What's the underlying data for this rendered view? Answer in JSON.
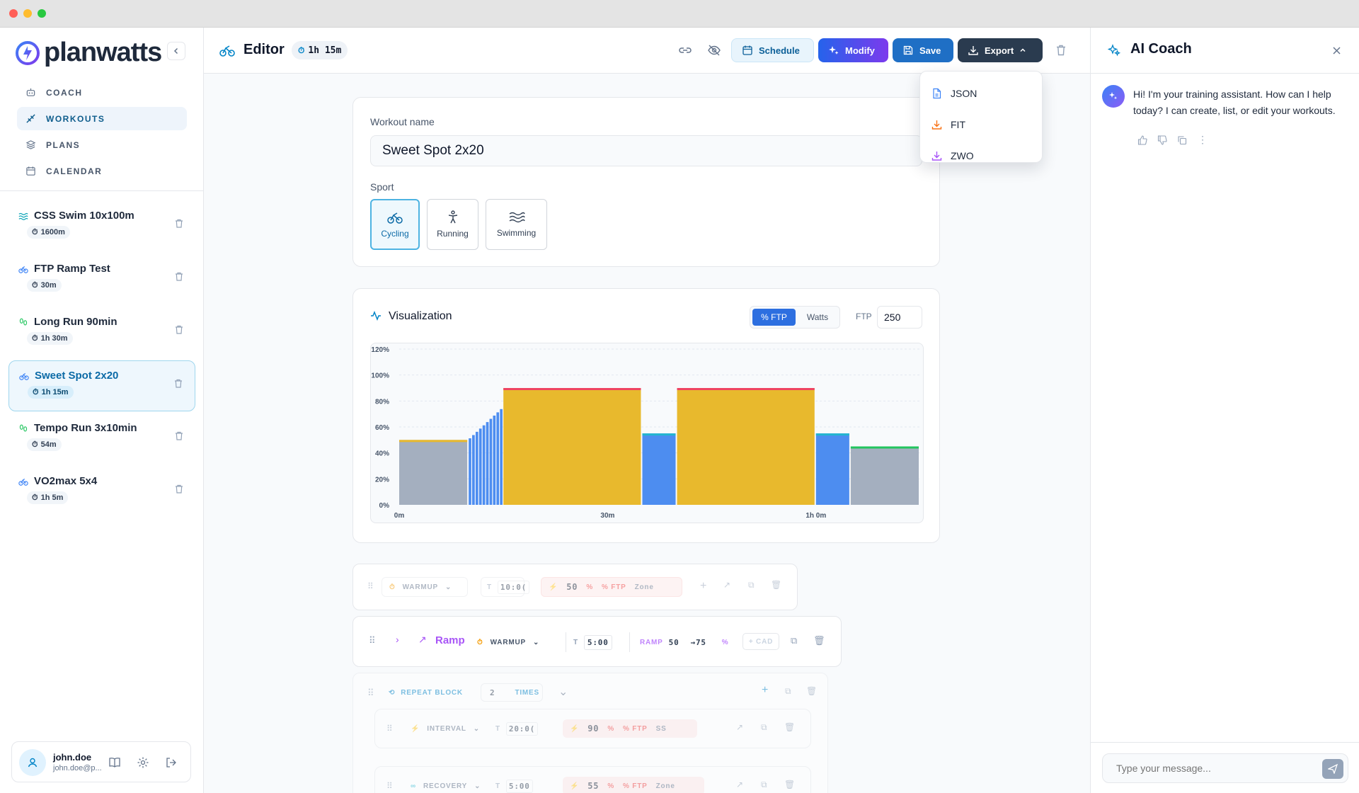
{
  "window": {
    "traffic_lights": {
      "close": "#ff5f57",
      "minimize": "#febc2e",
      "maximize": "#28c840"
    }
  },
  "app": {
    "brand": "planwatts",
    "accent": "#1d74c9"
  },
  "nav": [
    {
      "label": "COACH",
      "icon": "robot-icon"
    },
    {
      "label": "WORKOUTS",
      "icon": "workout-icon",
      "active": true
    },
    {
      "label": "PLANS",
      "icon": "layers-icon"
    },
    {
      "label": "CALENDAR",
      "icon": "calendar-icon"
    }
  ],
  "workouts": [
    {
      "name": "CSS Swim 10x100m",
      "meta": "1600m",
      "sport": "swimming"
    },
    {
      "name": "FTP Ramp Test",
      "meta": "30m",
      "sport": "cycling"
    },
    {
      "name": "Long Run 90min",
      "meta": "1h 30m",
      "sport": "running"
    },
    {
      "name": "Sweet Spot 2x20",
      "meta": "1h 15m",
      "sport": "cycling",
      "active": true
    },
    {
      "name": "Tempo Run 3x10min",
      "meta": "54m",
      "sport": "running"
    },
    {
      "name": "VO2max 5x4",
      "meta": "1h 5m",
      "sport": "cycling"
    }
  ],
  "user": {
    "name": "john.doe",
    "email": "john.doe@p..."
  },
  "editor": {
    "title": "Editor",
    "duration": "1h 15m",
    "buttons": {
      "schedule": "Schedule",
      "modify": "Modify",
      "save": "Save",
      "export": "Export"
    }
  },
  "export_menu": [
    "JSON",
    "FIT",
    "ZWO"
  ],
  "form": {
    "name_label": "Workout name",
    "name_value": "Sweet Spot 2x20",
    "sport_label": "Sport",
    "sports": [
      "Cycling",
      "Running",
      "Swimming"
    ],
    "selected_sport": "Cycling"
  },
  "viz": {
    "title": "Visualization",
    "toggle": [
      "% FTP",
      "Watts"
    ],
    "selected_toggle": "% FTP",
    "ftp_label": "FTP",
    "ftp_value": "250"
  },
  "chart_data": {
    "type": "bar",
    "y_ticks": [
      "0%",
      "20%",
      "40%",
      "60%",
      "80%",
      "100%",
      "120%"
    ],
    "ylim": [
      0,
      120
    ],
    "x_ticks": [
      {
        "label": "0m",
        "minute": 0
      },
      {
        "label": "30m",
        "minute": 30
      },
      {
        "label": "1h 0m",
        "minute": 60
      }
    ],
    "xlim": [
      0,
      75
    ],
    "segments": [
      {
        "start": 0,
        "end": 10,
        "value": 50,
        "fill": "#a4afbf",
        "cap": "#e8b92d"
      },
      {
        "ramp": true,
        "start": 10,
        "end": 15,
        "from": 50,
        "to": 75,
        "fill": "#4d8df0"
      },
      {
        "start": 15,
        "end": 35,
        "value": 90,
        "fill": "#e8b92d",
        "cap": "#ef4461"
      },
      {
        "start": 35,
        "end": 40,
        "value": 55,
        "fill": "#4d8df0",
        "cap": "#22b5cf"
      },
      {
        "start": 40,
        "end": 60,
        "value": 90,
        "fill": "#e8b92d",
        "cap": "#ef4461"
      },
      {
        "start": 60,
        "end": 65,
        "value": 55,
        "fill": "#4d8df0",
        "cap": "#22b5cf"
      },
      {
        "start": 65,
        "end": 75,
        "value": 45,
        "fill": "#a4afbf",
        "cap": "#22c55e"
      }
    ]
  },
  "steps": {
    "warmup": {
      "type": "WARMUP",
      "time": "10:0(",
      "power": "50",
      "pct": "%",
      "unit": "% FTP",
      "zone": "Zone"
    },
    "ramp": {
      "title": "Ramp",
      "type": "WARMUP",
      "time": "5:00",
      "ramp_label": "RAMP",
      "from": "50",
      "to": "→75",
      "pct": "%",
      "cad": "+ CAD"
    },
    "repeat": {
      "title": "REPEAT BLOCK",
      "count": "2",
      "times": "TIMES"
    },
    "interval": {
      "type": "INTERVAL",
      "time": "20:0(",
      "power": "90",
      "pct": "%",
      "unit": "% FTP",
      "zone": "SS"
    },
    "recovery": {
      "type": "RECOVERY",
      "time": "5:00",
      "power": "55",
      "pct": "%",
      "unit": "% FTP",
      "zone": "Zone"
    },
    "time_prefix": "T"
  },
  "coach": {
    "title": "AI Coach",
    "message": "Hi! I'm your training assistant. How can I help today? I can create, list, or edit your workouts.",
    "input_placeholder": "Type your message..."
  }
}
